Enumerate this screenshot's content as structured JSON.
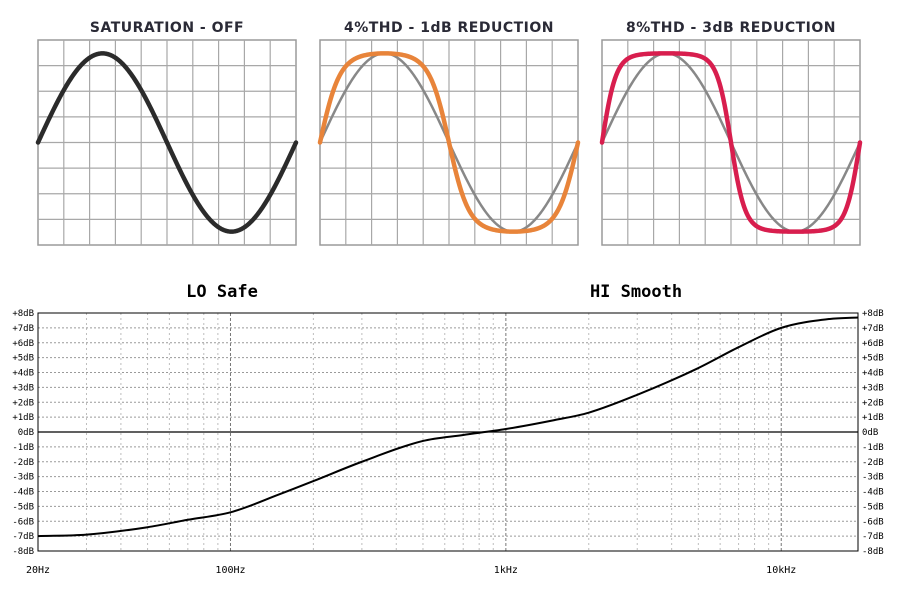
{
  "chart_data": [
    {
      "type": "line",
      "title": "SATURATION - OFF",
      "xlabel": "",
      "ylabel": "",
      "series": [
        {
          "values": [
            0,
            1,
            0,
            -1,
            0
          ],
          "color": "#2b2b2b"
        }
      ],
      "x": [
        0,
        0.25,
        0.5,
        0.75,
        1
      ],
      "ylim": [
        -1.15,
        1.15
      ],
      "grid": true
    },
    {
      "type": "line",
      "title": "4%THD - 1dB REDUCTION",
      "xlabel": "",
      "ylabel": "",
      "series": [
        {
          "values": [
            0,
            1,
            0,
            -1,
            0
          ],
          "color": "#888888"
        },
        {
          "values": [
            0,
            1,
            0,
            -1,
            0
          ],
          "color": "#e8843a",
          "saturation": 0.45
        }
      ],
      "x": [
        0,
        0.25,
        0.5,
        0.75,
        1
      ],
      "ylim": [
        -1.15,
        1.15
      ],
      "grid": true
    },
    {
      "type": "line",
      "title": "8%THD - 3dB REDUCTION",
      "xlabel": "",
      "ylabel": "",
      "series": [
        {
          "values": [
            0,
            1,
            0,
            -1,
            0
          ],
          "color": "#888888"
        },
        {
          "values": [
            0,
            1,
            0,
            -1,
            0
          ],
          "color": "#d81e4e",
          "saturation": 0.85
        }
      ],
      "x": [
        0,
        0.25,
        0.5,
        0.75,
        1
      ],
      "ylim": [
        -1.15,
        1.15
      ],
      "grid": true
    },
    {
      "type": "line",
      "title_left": "LO Safe",
      "title_right": "HI Smooth",
      "xlabel": "",
      "ylabel": "",
      "xscale": "log",
      "xlim": [
        20,
        19000
      ],
      "ylim": [
        -8,
        8
      ],
      "x_ticks": [
        {
          "value": 20,
          "label": "20Hz"
        },
        {
          "value": 100,
          "label": "100Hz"
        },
        {
          "value": 1000,
          "label": "1kHz"
        },
        {
          "value": 10000,
          "label": "10kHz"
        }
      ],
      "y_ticks": [
        "+8dB",
        "+7dB",
        "+6dB",
        "+5dB",
        "+4dB",
        "+3dB",
        "+2dB",
        "+1dB",
        "0dB",
        "-1dB",
        "-2dB",
        "-3dB",
        "-4dB",
        "-5dB",
        "-6dB",
        "-7dB",
        "-8dB"
      ],
      "series": [
        {
          "color": "#000000",
          "x": [
            20,
            30,
            50,
            70,
            100,
            150,
            200,
            300,
            500,
            700,
            1000,
            1500,
            2000,
            3000,
            5000,
            7000,
            10000,
            15000,
            19000
          ],
          "values": [
            -7.0,
            -6.9,
            -6.4,
            -5.9,
            -5.4,
            -4.2,
            -3.3,
            -2.0,
            -0.6,
            -0.2,
            0.2,
            0.8,
            1.3,
            2.5,
            4.3,
            5.7,
            7.0,
            7.6,
            7.7
          ]
        }
      ],
      "grid": true
    }
  ]
}
